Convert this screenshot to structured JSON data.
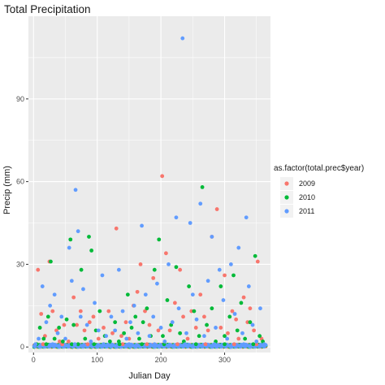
{
  "chart_data": {
    "type": "scatter",
    "title": "Total Precipitation",
    "xlabel": "Julian Day",
    "ylabel": "Precip (mm)",
    "xlim": [
      -8,
      372
    ],
    "ylim": [
      -2,
      120
    ],
    "x_ticks": [
      0,
      100,
      200,
      300
    ],
    "y_ticks": [
      0,
      30,
      60,
      90
    ],
    "grid": true,
    "legend": {
      "title": "as.factor(total.prec$year)",
      "position": "right"
    },
    "series": [
      {
        "name": "2009",
        "color": "#F8766D",
        "points": [
          [
            7,
            28
          ],
          [
            12,
            12
          ],
          [
            18,
            4
          ],
          [
            25,
            31
          ],
          [
            30,
            13
          ],
          [
            36,
            6
          ],
          [
            41,
            2
          ],
          [
            48,
            8
          ],
          [
            55,
            2
          ],
          [
            63,
            18
          ],
          [
            68,
            8
          ],
          [
            74,
            13
          ],
          [
            80,
            6
          ],
          [
            88,
            9
          ],
          [
            94,
            11
          ],
          [
            102,
            3
          ],
          [
            110,
            7
          ],
          [
            118,
            13
          ],
          [
            124,
            5
          ],
          [
            130,
            43
          ],
          [
            138,
            4
          ],
          [
            145,
            9
          ],
          [
            150,
            3
          ],
          [
            157,
            15
          ],
          [
            163,
            20
          ],
          [
            168,
            30
          ],
          [
            175,
            13
          ],
          [
            182,
            8
          ],
          [
            188,
            25
          ],
          [
            196,
            6
          ],
          [
            202,
            62
          ],
          [
            208,
            34
          ],
          [
            214,
            6
          ],
          [
            222,
            16
          ],
          [
            230,
            28
          ],
          [
            235,
            11
          ],
          [
            242,
            3
          ],
          [
            248,
            13
          ],
          [
            255,
            7
          ],
          [
            262,
            19
          ],
          [
            268,
            11
          ],
          [
            274,
            6
          ],
          [
            280,
            40
          ],
          [
            288,
            50
          ],
          [
            294,
            7
          ],
          [
            300,
            26
          ],
          [
            305,
            5
          ],
          [
            312,
            13
          ],
          [
            318,
            10
          ],
          [
            322,
            3
          ],
          [
            330,
            18
          ],
          [
            336,
            9
          ],
          [
            340,
            14
          ],
          [
            346,
            6
          ],
          [
            352,
            31
          ],
          [
            358,
            3
          ],
          [
            15,
            1
          ],
          [
            45,
            1
          ],
          [
            85,
            1
          ],
          [
            140,
            1
          ],
          [
            178,
            1
          ],
          [
            226,
            1
          ],
          [
            270,
            1
          ],
          [
            315,
            1
          ],
          [
            350,
            1
          ]
        ]
      },
      {
        "name": "2010",
        "color": "#00BA38",
        "points": [
          [
            5,
            1
          ],
          [
            10,
            7
          ],
          [
            16,
            3
          ],
          [
            23,
            11
          ],
          [
            27,
            31
          ],
          [
            33,
            3
          ],
          [
            40,
            7
          ],
          [
            46,
            2
          ],
          [
            52,
            10
          ],
          [
            58,
            39
          ],
          [
            63,
            8
          ],
          [
            70,
            1
          ],
          [
            75,
            28
          ],
          [
            81,
            3
          ],
          [
            87,
            40
          ],
          [
            91,
            35
          ],
          [
            98,
            6
          ],
          [
            104,
            13
          ],
          [
            112,
            4
          ],
          [
            120,
            2
          ],
          [
            128,
            9
          ],
          [
            134,
            2
          ],
          [
            142,
            5
          ],
          [
            148,
            19
          ],
          [
            154,
            7
          ],
          [
            160,
            11
          ],
          [
            166,
            3
          ],
          [
            172,
            9
          ],
          [
            178,
            14
          ],
          [
            184,
            4
          ],
          [
            190,
            28
          ],
          [
            197,
            39
          ],
          [
            203,
            4
          ],
          [
            210,
            17
          ],
          [
            216,
            8
          ],
          [
            224,
            29
          ],
          [
            230,
            5
          ],
          [
            236,
            2
          ],
          [
            244,
            22
          ],
          [
            252,
            13
          ],
          [
            260,
            4
          ],
          [
            265,
            58
          ],
          [
            272,
            8
          ],
          [
            280,
            14
          ],
          [
            286,
            2
          ],
          [
            294,
            22
          ],
          [
            300,
            4
          ],
          [
            308,
            11
          ],
          [
            314,
            26
          ],
          [
            320,
            6
          ],
          [
            326,
            16
          ],
          [
            332,
            3
          ],
          [
            340,
            9
          ],
          [
            348,
            33
          ],
          [
            355,
            4
          ],
          [
            360,
            2
          ],
          [
            20,
            1
          ],
          [
            60,
            1
          ],
          [
            95,
            1
          ],
          [
            135,
            1
          ],
          [
            170,
            1
          ],
          [
            205,
            1
          ],
          [
            255,
            1
          ],
          [
            300,
            1
          ],
          [
            345,
            1
          ]
        ]
      },
      {
        "name": "2011",
        "color": "#619CFF",
        "points": [
          [
            8,
            3
          ],
          [
            14,
            22
          ],
          [
            20,
            9
          ],
          [
            26,
            15
          ],
          [
            33,
            19
          ],
          [
            38,
            5
          ],
          [
            44,
            11
          ],
          [
            50,
            3
          ],
          [
            56,
            36
          ],
          [
            60,
            24
          ],
          [
            66,
            57
          ],
          [
            70,
            42
          ],
          [
            74,
            11
          ],
          [
            78,
            21
          ],
          [
            84,
            8
          ],
          [
            90,
            2
          ],
          [
            96,
            16
          ],
          [
            102,
            6
          ],
          [
            108,
            26
          ],
          [
            114,
            4
          ],
          [
            122,
            11
          ],
          [
            128,
            6
          ],
          [
            134,
            28
          ],
          [
            140,
            13
          ],
          [
            146,
            3
          ],
          [
            152,
            9
          ],
          [
            158,
            15
          ],
          [
            164,
            5
          ],
          [
            170,
            44
          ],
          [
            176,
            19
          ],
          [
            182,
            4
          ],
          [
            188,
            11
          ],
          [
            194,
            23
          ],
          [
            200,
            7
          ],
          [
            206,
            2
          ],
          [
            212,
            30
          ],
          [
            218,
            9
          ],
          [
            224,
            47
          ],
          [
            228,
            14
          ],
          [
            234,
            112
          ],
          [
            240,
            5
          ],
          [
            246,
            45
          ],
          [
            250,
            19
          ],
          [
            256,
            10
          ],
          [
            262,
            52
          ],
          [
            268,
            4
          ],
          [
            274,
            24
          ],
          [
            280,
            40
          ],
          [
            286,
            7
          ],
          [
            292,
            28
          ],
          [
            298,
            17
          ],
          [
            304,
            3
          ],
          [
            310,
            30
          ],
          [
            316,
            12
          ],
          [
            322,
            36
          ],
          [
            328,
            5
          ],
          [
            334,
            47
          ],
          [
            338,
            22
          ],
          [
            344,
            8
          ],
          [
            350,
            2
          ],
          [
            356,
            14
          ],
          [
            3,
            1
          ],
          [
            30,
            1
          ],
          [
            65,
            1
          ],
          [
            110,
            1
          ],
          [
            150,
            1
          ],
          [
            190,
            1
          ],
          [
            238,
            1
          ],
          [
            284,
            1
          ],
          [
            330,
            1
          ],
          [
            362,
            1
          ]
        ]
      }
    ]
  }
}
